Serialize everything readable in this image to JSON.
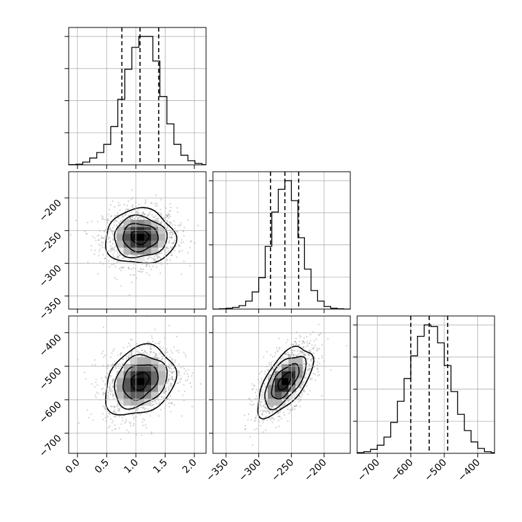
{
  "chart_data": {
    "type": "corner",
    "grid": true,
    "parameters": [
      {
        "range": [
          -0.15,
          2.2
        ],
        "ticks": [
          0.0,
          0.5,
          1.0,
          1.5,
          2.0
        ],
        "tick_labels": [
          "0.0",
          "0.5",
          "1.0",
          "1.5",
          "2.0"
        ],
        "quantiles": [
          0.76,
          1.07,
          1.39
        ],
        "mean": 1.07,
        "sd": 0.3
      },
      {
        "range": [
          -370,
          -160
        ],
        "ticks": [
          -350,
          -300,
          -250,
          -200
        ],
        "tick_labels": [
          "−350",
          "−300",
          "−250",
          "−200"
        ],
        "quantiles": [
          -282,
          -260,
          -239
        ],
        "mean": -260,
        "sd": 21
      },
      {
        "range": [
          -760,
          -350
        ],
        "ticks": [
          -700,
          -600,
          -500,
          -400
        ],
        "tick_labels": [
          "−700",
          "−600",
          "−500",
          "−400"
        ],
        "quantiles": [
          -600,
          -545,
          -490
        ],
        "mean": -545,
        "sd": 52
      }
    ],
    "histograms": [
      {
        "param": 0,
        "edges": [
          -0.15,
          -0.03,
          0.09,
          0.21,
          0.33,
          0.45,
          0.57,
          0.69,
          0.81,
          0.93,
          1.05,
          1.17,
          1.29,
          1.41,
          1.53,
          1.65,
          1.77,
          1.89,
          2.01,
          2.13,
          2.2
        ],
        "counts": [
          1,
          2,
          10,
          25,
          45,
          75,
          140,
          240,
          350,
          430,
          470,
          470,
          380,
          250,
          150,
          75,
          35,
          15,
          5,
          1
        ]
      },
      {
        "param": 1,
        "edges": [
          -370,
          -360,
          -350,
          -340,
          -330,
          -320,
          -310,
          -300,
          -290,
          -280,
          -270,
          -260,
          -250,
          -240,
          -230,
          -220,
          -210,
          -200,
          -190,
          -180,
          -170,
          -160
        ],
        "counts": [
          0,
          1,
          3,
          6,
          12,
          28,
          60,
          110,
          220,
          340,
          420,
          450,
          380,
          250,
          140,
          65,
          28,
          9,
          3,
          1,
          0
        ]
      },
      {
        "param": 2,
        "edges": [
          -760,
          -740,
          -720,
          -700,
          -680,
          -660,
          -640,
          -620,
          -600,
          -580,
          -560,
          -540,
          -520,
          -500,
          -480,
          -460,
          -440,
          -420,
          -400,
          -380,
          -360,
          -350
        ],
        "counts": [
          2,
          5,
          12,
          25,
          50,
          95,
          160,
          230,
          300,
          360,
          395,
          390,
          340,
          270,
          190,
          120,
          70,
          35,
          15,
          5,
          2
        ]
      }
    ],
    "joint_distributions": [
      {
        "x_param": 0,
        "y_param": 1,
        "correlation": 0.0
      },
      {
        "x_param": 0,
        "y_param": 2,
        "correlation": 0.25
      },
      {
        "x_param": 1,
        "y_param": 2,
        "correlation": 0.62
      }
    ]
  }
}
